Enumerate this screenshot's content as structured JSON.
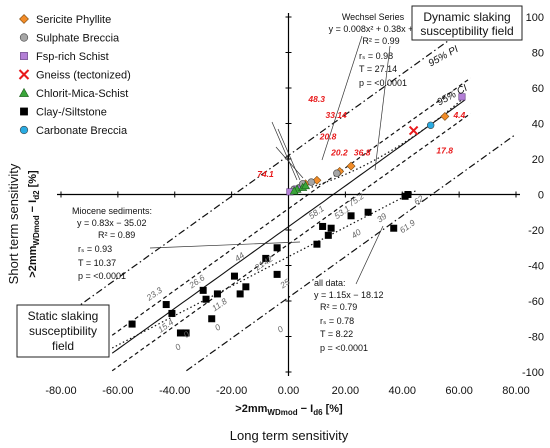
{
  "chart_data": {
    "type": "scatter",
    "xlim": [
      -80,
      80
    ],
    "ylim": [
      -100,
      100
    ],
    "x_ticks": [
      "-80.00",
      "-60.00",
      "-40.00",
      "-20.00",
      "0.00",
      "20.00",
      "40.00",
      "60.00",
      "80.00"
    ],
    "y_ticks": [
      "100",
      "80",
      "60",
      "40",
      "20",
      "0",
      "-20",
      "-40",
      "-60",
      "-80",
      "-100"
    ],
    "xlabel_main": ">2mm",
    "xlabel_sub": "WDmod",
    "xlabel_tail": " − I",
    "xlabel_sub2": "d6",
    "xlabel_unit": " [%]",
    "xcaption": "Long term sensitivity",
    "ylabel_main": ">2mm",
    "ylabel_sub": "WDmod",
    "ylabel_tail": " − I",
    "ylabel_sub2": "d2",
    "ylabel_unit": " [%]",
    "ycaption": "Short term sensitivity",
    "legend": [
      {
        "label": "Sericite Phyllite",
        "marker": "diamond",
        "color": "#f28c28"
      },
      {
        "label": "Sulphate Breccia",
        "marker": "circle",
        "color": "#a6a6a6"
      },
      {
        "label": "Fsp-rich Schist",
        "marker": "square",
        "color": "#b37fd6"
      },
      {
        "label": "Gneiss (tectonized)",
        "marker": "cross",
        "color": "#e8191b"
      },
      {
        "label": "Chlorit-Mica-Schist",
        "marker": "triangle",
        "color": "#3aa63a"
      },
      {
        "label": "Clay-/Siltstone",
        "marker": "square",
        "color": "#000000"
      },
      {
        "label": "Carbonate Breccia",
        "marker": "circle",
        "color": "#29abe2"
      }
    ],
    "series": [
      {
        "name": "Sericite Phyllite",
        "points": [
          [
            22,
            16
          ],
          [
            18,
            13
          ],
          [
            10,
            8
          ],
          [
            6,
            6
          ],
          [
            55,
            44
          ],
          [
            3,
            3
          ]
        ]
      },
      {
        "name": "Sulphate Breccia",
        "points": [
          [
            2,
            3
          ],
          [
            4,
            4
          ],
          [
            5,
            6
          ],
          [
            17,
            12
          ],
          [
            8,
            7
          ]
        ]
      },
      {
        "name": "Fsp-rich Schist",
        "points": [
          [
            61,
            55
          ],
          [
            0.5,
            1.5
          ],
          [
            3,
            3
          ]
        ]
      },
      {
        "name": "Gneiss (tectonized)",
        "points": [
          [
            44,
            36
          ]
        ]
      },
      {
        "name": "Chlorit-Mica-Schist",
        "points": [
          [
            3,
            3
          ],
          [
            5,
            4
          ],
          [
            2,
            2
          ],
          [
            6,
            5
          ]
        ]
      },
      {
        "name": "Clay-/Siltstone",
        "points": [
          [
            -55,
            -73
          ],
          [
            -43,
            -62
          ],
          [
            -41,
            -67
          ],
          [
            -38,
            -78
          ],
          [
            -36,
            -78
          ],
          [
            -30,
            -54
          ],
          [
            -29,
            -59
          ],
          [
            -27,
            -70
          ],
          [
            -19,
            -46
          ],
          [
            -17,
            -56
          ],
          [
            -8,
            -36
          ],
          [
            -4,
            -30
          ],
          [
            -4,
            -45
          ],
          [
            10,
            -28
          ],
          [
            12,
            -18
          ],
          [
            14,
            -23
          ],
          [
            15,
            -19
          ],
          [
            22,
            -12
          ],
          [
            28,
            -10
          ],
          [
            37,
            -19
          ],
          [
            42,
            0
          ],
          [
            41,
            -1
          ],
          [
            -25,
            -56
          ],
          [
            -15,
            -52
          ]
        ]
      },
      {
        "name": "Carbonate Breccia",
        "points": [
          [
            50,
            39
          ]
        ]
      }
    ],
    "lines": [
      {
        "name": "Wechsel Series",
        "a": 0.008,
        "b": 0.38,
        "c": 0.54,
        "style": "dotted",
        "from": 0,
        "to": 62
      },
      {
        "name": "Miocene sediments",
        "a": 0,
        "b": 0.83,
        "c": -35.02,
        "style": "dotted",
        "from": -62,
        "to": 45
      },
      {
        "name": "all data",
        "a": 0,
        "b": 1.15,
        "c": -18.12,
        "style": "solid",
        "from": -62,
        "to": 62
      },
      {
        "name": "95% PI upper",
        "a": 0,
        "b": 1.15,
        "c": 22,
        "style": "dashdot",
        "from": -80,
        "to": 62
      },
      {
        "name": "95% PI lower",
        "a": 0,
        "b": 1.15,
        "c": -58,
        "style": "dashdot",
        "from": -42,
        "to": 80
      },
      {
        "name": "95% CI upper",
        "a": 0,
        "b": 1.15,
        "c": -8,
        "style": "dashed",
        "from": -62,
        "to": 64
      },
      {
        "name": "95% CI lower",
        "a": 0,
        "b": 1.15,
        "c": -28,
        "style": "dashed",
        "from": -62,
        "to": 64
      }
    ],
    "line_labels": [
      {
        "text": "95% PI",
        "x": 50,
        "y": 72,
        "angle": -29
      },
      {
        "text": "95% CI",
        "x": 53,
        "y": 50,
        "angle": -29
      }
    ],
    "point_labels_red": [
      {
        "text": "48.3",
        "x": 7,
        "y": 52
      },
      {
        "text": "33.14",
        "x": 13,
        "y": 43
      },
      {
        "text": "20.8",
        "x": 11,
        "y": 31
      },
      {
        "text": "20.2",
        "x": 15,
        "y": 22
      },
      {
        "text": "36.8",
        "x": 23,
        "y": 22
      },
      {
        "text": "74.1",
        "x": -11,
        "y": 10
      },
      {
        "text": "4.4",
        "x": 58,
        "y": 43
      },
      {
        "text": "17.8",
        "x": 52,
        "y": 23
      }
    ],
    "point_labels_grey": [
      {
        "text": "62",
        "x": 45,
        "y": -6
      },
      {
        "text": "75.2",
        "x": 22,
        "y": -7
      },
      {
        "text": "58.1",
        "x": 8,
        "y": -14
      },
      {
        "text": "53.1",
        "x": 17,
        "y": -14
      },
      {
        "text": "39",
        "x": 32,
        "y": -16
      },
      {
        "text": "40",
        "x": 23,
        "y": -25
      },
      {
        "text": "61.9",
        "x": 40,
        "y": -22
      },
      {
        "text": "44",
        "x": -18,
        "y": -38
      },
      {
        "text": "42",
        "x": -8,
        "y": -40
      },
      {
        "text": "21",
        "x": -11,
        "y": -43
      },
      {
        "text": "25",
        "x": -2,
        "y": -53
      },
      {
        "text": "26.6",
        "x": -34,
        "y": -53
      },
      {
        "text": "11.8",
        "x": -26,
        "y": -66
      },
      {
        "text": "23.3",
        "x": -49,
        "y": -60
      },
      {
        "text": "13.8",
        "x": -74,
        "y": -71
      },
      {
        "text": "15.4",
        "x": -45,
        "y": -78
      },
      {
        "text": "0",
        "x": -25,
        "y": -77
      },
      {
        "text": "0",
        "x": -39,
        "y": -88
      },
      {
        "text": "0",
        "x": -36,
        "y": -81
      },
      {
        "text": "0",
        "x": -3,
        "y": -78
      }
    ],
    "annotations": {
      "wechsel": [
        "Wechsel Series",
        "y = 0.008x² + 0.38x + 0.54",
        "R² = 0.99",
        "rₛ = 0.98",
        "T = 27.14",
        "p = <0.0001"
      ],
      "miocene": [
        "Miocene sediments:",
        "y = 0.83x − 35.02",
        "R² = 0.89",
        "rₛ = 0.93",
        "T = 10.37",
        "p = <0.0001"
      ],
      "alldata": [
        "all data:",
        "y = 1.15x − 18.12",
        "R² = 0.79",
        "rₛ = 0.78",
        "T = 8.22",
        "p = <0.0001"
      ]
    },
    "boxes": {
      "dynamic": [
        "Dynamic slaking",
        "susceptibility field"
      ],
      "static": [
        "Static slaking",
        "susceptibility",
        "field"
      ]
    }
  }
}
